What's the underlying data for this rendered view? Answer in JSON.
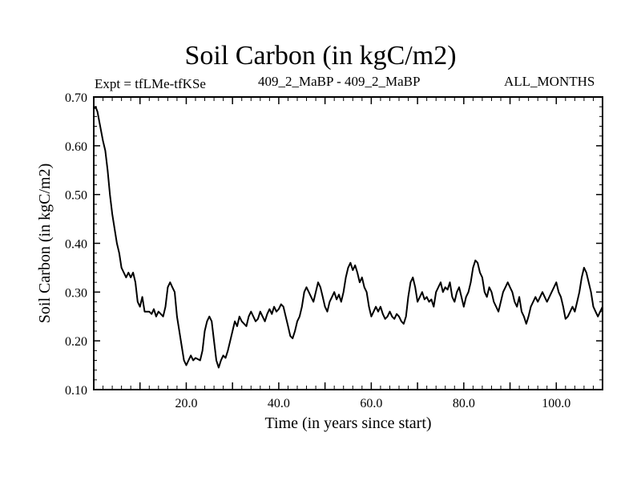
{
  "chart_data": {
    "type": "line",
    "title": "Soil Carbon (in kgC/m2)",
    "experiment_label": "Expt = tfLMe-tfKSe",
    "subtitle": "409_2_MaBP - 409_2_MaBP",
    "period_label": "ALL_MONTHS",
    "xlabel": "Time (in years since start)",
    "ylabel": "Soil Carbon (in kgC/m2)",
    "xlim": [
      0,
      110
    ],
    "ylim": [
      0.1,
      0.7
    ],
    "x_ticks": [
      {
        "value": 20,
        "label": "20.0"
      },
      {
        "value": 40,
        "label": "40.0"
      },
      {
        "value": 60,
        "label": "60.0"
      },
      {
        "value": 80,
        "label": "80.0"
      },
      {
        "value": 100,
        "label": "100.0"
      }
    ],
    "y_ticks": [
      {
        "value": 0.1,
        "label": "0.10"
      },
      {
        "value": 0.2,
        "label": "0.20"
      },
      {
        "value": 0.3,
        "label": "0.30"
      },
      {
        "value": 0.4,
        "label": "0.40"
      },
      {
        "value": 0.5,
        "label": "0.50"
      },
      {
        "value": 0.6,
        "label": "0.60"
      },
      {
        "value": 0.7,
        "label": "0.70"
      }
    ],
    "series": [
      {
        "name": "Soil Carbon",
        "color": "#000000",
        "points": [
          [
            0.0,
            0.675
          ],
          [
            0.4,
            0.68
          ],
          [
            0.8,
            0.67
          ],
          [
            1.2,
            0.65
          ],
          [
            1.6,
            0.63
          ],
          [
            2.0,
            0.61
          ],
          [
            2.5,
            0.59
          ],
          [
            3.0,
            0.55
          ],
          [
            3.5,
            0.5
          ],
          [
            4.0,
            0.46
          ],
          [
            4.5,
            0.43
          ],
          [
            5.0,
            0.4
          ],
          [
            5.5,
            0.38
          ],
          [
            6.0,
            0.35
          ],
          [
            6.5,
            0.34
          ],
          [
            7.0,
            0.33
          ],
          [
            7.5,
            0.34
          ],
          [
            8.0,
            0.33
          ],
          [
            8.5,
            0.34
          ],
          [
            9.0,
            0.32
          ],
          [
            9.5,
            0.28
          ],
          [
            10.0,
            0.27
          ],
          [
            10.5,
            0.29
          ],
          [
            11.0,
            0.26
          ],
          [
            12.0,
            0.26
          ],
          [
            12.5,
            0.255
          ],
          [
            13.0,
            0.265
          ],
          [
            13.5,
            0.25
          ],
          [
            14.0,
            0.26
          ],
          [
            14.5,
            0.255
          ],
          [
            15.0,
            0.25
          ],
          [
            15.5,
            0.27
          ],
          [
            16.0,
            0.31
          ],
          [
            16.5,
            0.32
          ],
          [
            17.0,
            0.31
          ],
          [
            17.5,
            0.3
          ],
          [
            18.0,
            0.25
          ],
          [
            18.5,
            0.22
          ],
          [
            19.0,
            0.19
          ],
          [
            19.5,
            0.16
          ],
          [
            20.0,
            0.15
          ],
          [
            20.5,
            0.16
          ],
          [
            21.0,
            0.17
          ],
          [
            21.5,
            0.16
          ],
          [
            22.0,
            0.165
          ],
          [
            23.0,
            0.16
          ],
          [
            23.5,
            0.18
          ],
          [
            24.0,
            0.22
          ],
          [
            24.5,
            0.24
          ],
          [
            25.0,
            0.25
          ],
          [
            25.5,
            0.24
          ],
          [
            26.0,
            0.2
          ],
          [
            26.5,
            0.16
          ],
          [
            27.0,
            0.145
          ],
          [
            27.5,
            0.16
          ],
          [
            28.0,
            0.17
          ],
          [
            28.5,
            0.165
          ],
          [
            29.0,
            0.18
          ],
          [
            29.5,
            0.2
          ],
          [
            30.0,
            0.22
          ],
          [
            30.5,
            0.24
          ],
          [
            31.0,
            0.23
          ],
          [
            31.5,
            0.25
          ],
          [
            32.0,
            0.24
          ],
          [
            33.0,
            0.23
          ],
          [
            33.5,
            0.25
          ],
          [
            34.0,
            0.26
          ],
          [
            34.5,
            0.25
          ],
          [
            35.0,
            0.24
          ],
          [
            35.5,
            0.245
          ],
          [
            36.0,
            0.26
          ],
          [
            36.5,
            0.25
          ],
          [
            37.0,
            0.24
          ],
          [
            37.5,
            0.255
          ],
          [
            38.0,
            0.265
          ],
          [
            38.5,
            0.255
          ],
          [
            39.0,
            0.27
          ],
          [
            39.5,
            0.26
          ],
          [
            40.0,
            0.265
          ],
          [
            40.5,
            0.275
          ],
          [
            41.0,
            0.27
          ],
          [
            41.5,
            0.25
          ],
          [
            42.0,
            0.23
          ],
          [
            42.5,
            0.21
          ],
          [
            43.0,
            0.205
          ],
          [
            43.5,
            0.22
          ],
          [
            44.0,
            0.24
          ],
          [
            44.5,
            0.25
          ],
          [
            45.0,
            0.27
          ],
          [
            45.5,
            0.3
          ],
          [
            46.0,
            0.31
          ],
          [
            46.5,
            0.3
          ],
          [
            47.0,
            0.29
          ],
          [
            47.5,
            0.28
          ],
          [
            48.0,
            0.3
          ],
          [
            48.5,
            0.32
          ],
          [
            49.0,
            0.31
          ],
          [
            49.5,
            0.29
          ],
          [
            50.0,
            0.27
          ],
          [
            50.5,
            0.26
          ],
          [
            51.0,
            0.28
          ],
          [
            51.5,
            0.29
          ],
          [
            52.0,
            0.3
          ],
          [
            52.5,
            0.285
          ],
          [
            53.0,
            0.295
          ],
          [
            53.5,
            0.28
          ],
          [
            54.0,
            0.3
          ],
          [
            54.5,
            0.33
          ],
          [
            55.0,
            0.35
          ],
          [
            55.5,
            0.36
          ],
          [
            56.0,
            0.345
          ],
          [
            56.5,
            0.355
          ],
          [
            57.0,
            0.34
          ],
          [
            57.5,
            0.32
          ],
          [
            58.0,
            0.33
          ],
          [
            58.5,
            0.31
          ],
          [
            59.0,
            0.3
          ],
          [
            59.5,
            0.27
          ],
          [
            60.0,
            0.25
          ],
          [
            60.5,
            0.26
          ],
          [
            61.0,
            0.27
          ],
          [
            61.5,
            0.26
          ],
          [
            62.0,
            0.27
          ],
          [
            62.5,
            0.255
          ],
          [
            63.0,
            0.245
          ],
          [
            63.5,
            0.25
          ],
          [
            64.0,
            0.26
          ],
          [
            64.5,
            0.25
          ],
          [
            65.0,
            0.245
          ],
          [
            65.5,
            0.255
          ],
          [
            66.0,
            0.25
          ],
          [
            66.5,
            0.24
          ],
          [
            67.0,
            0.235
          ],
          [
            67.5,
            0.25
          ],
          [
            68.0,
            0.29
          ],
          [
            68.5,
            0.32
          ],
          [
            69.0,
            0.33
          ],
          [
            69.5,
            0.31
          ],
          [
            70.0,
            0.28
          ],
          [
            70.5,
            0.29
          ],
          [
            71.0,
            0.3
          ],
          [
            71.5,
            0.285
          ],
          [
            72.0,
            0.29
          ],
          [
            72.5,
            0.28
          ],
          [
            73.0,
            0.285
          ],
          [
            73.5,
            0.27
          ],
          [
            74.0,
            0.3
          ],
          [
            74.5,
            0.31
          ],
          [
            75.0,
            0.32
          ],
          [
            75.5,
            0.3
          ],
          [
            76.0,
            0.31
          ],
          [
            76.5,
            0.305
          ],
          [
            77.0,
            0.32
          ],
          [
            77.5,
            0.29
          ],
          [
            78.0,
            0.28
          ],
          [
            78.5,
            0.3
          ],
          [
            79.0,
            0.31
          ],
          [
            79.5,
            0.29
          ],
          [
            80.0,
            0.27
          ],
          [
            80.5,
            0.29
          ],
          [
            81.0,
            0.3
          ],
          [
            81.5,
            0.32
          ],
          [
            82.0,
            0.35
          ],
          [
            82.5,
            0.365
          ],
          [
            83.0,
            0.36
          ],
          [
            83.5,
            0.34
          ],
          [
            84.0,
            0.33
          ],
          [
            84.5,
            0.3
          ],
          [
            85.0,
            0.29
          ],
          [
            85.5,
            0.31
          ],
          [
            86.0,
            0.3
          ],
          [
            86.5,
            0.28
          ],
          [
            87.0,
            0.27
          ],
          [
            87.5,
            0.26
          ],
          [
            88.0,
            0.28
          ],
          [
            88.5,
            0.3
          ],
          [
            89.0,
            0.31
          ],
          [
            89.5,
            0.32
          ],
          [
            90.0,
            0.31
          ],
          [
            90.5,
            0.3
          ],
          [
            91.0,
            0.28
          ],
          [
            91.5,
            0.27
          ],
          [
            92.0,
            0.29
          ],
          [
            92.5,
            0.26
          ],
          [
            93.0,
            0.25
          ],
          [
            93.5,
            0.235
          ],
          [
            94.0,
            0.25
          ],
          [
            94.5,
            0.27
          ],
          [
            95.0,
            0.28
          ],
          [
            95.5,
            0.29
          ],
          [
            96.0,
            0.28
          ],
          [
            96.5,
            0.29
          ],
          [
            97.0,
            0.3
          ],
          [
            97.5,
            0.29
          ],
          [
            98.0,
            0.28
          ],
          [
            98.5,
            0.29
          ],
          [
            99.0,
            0.3
          ],
          [
            99.5,
            0.31
          ],
          [
            100.0,
            0.32
          ],
          [
            100.5,
            0.3
          ],
          [
            101.0,
            0.29
          ],
          [
            101.5,
            0.27
          ],
          [
            102.0,
            0.245
          ],
          [
            102.5,
            0.25
          ],
          [
            103.0,
            0.26
          ],
          [
            103.5,
            0.27
          ],
          [
            104.0,
            0.26
          ],
          [
            104.5,
            0.28
          ],
          [
            105.0,
            0.3
          ],
          [
            105.5,
            0.33
          ],
          [
            106.0,
            0.35
          ],
          [
            106.5,
            0.34
          ],
          [
            107.0,
            0.32
          ],
          [
            107.5,
            0.3
          ],
          [
            108.0,
            0.27
          ],
          [
            108.5,
            0.26
          ],
          [
            109.0,
            0.25
          ],
          [
            109.5,
            0.26
          ],
          [
            110.0,
            0.27
          ]
        ]
      }
    ]
  }
}
